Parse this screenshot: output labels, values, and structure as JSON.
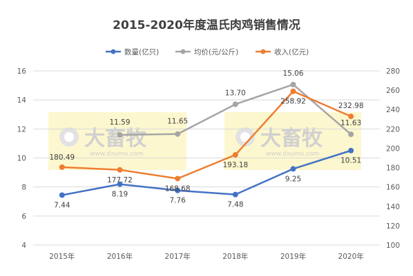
{
  "chart_data": {
    "type": "line",
    "title": "2015-2020年度温氏肉鸡销售情况",
    "categories": [
      "2015年",
      "2016年",
      "2017年",
      "2018年",
      "2019年",
      "2020年"
    ],
    "series": [
      {
        "name": "数量(亿只)",
        "axis": "left",
        "color": "#4472c4",
        "values": [
          7.44,
          8.19,
          7.76,
          7.48,
          9.25,
          10.51
        ],
        "labels": [
          "7.44",
          "8.19",
          "7.76",
          "7.48",
          "9.25",
          "10.51"
        ]
      },
      {
        "name": "均价(元/公斤)",
        "axis": "left",
        "color": "#a5a5a5",
        "values": [
          null,
          11.59,
          11.65,
          13.7,
          15.06,
          11.63
        ],
        "labels": [
          "",
          "11.59",
          "11.65",
          "13.70",
          "15.06",
          "11.63"
        ]
      },
      {
        "name": "收入(亿元)",
        "axis": "right",
        "color": "#ed7d31",
        "values": [
          180.49,
          177.72,
          168.68,
          193.18,
          258.92,
          232.98
        ],
        "labels": [
          "180.49",
          "177.72",
          "168.68",
          "193.18",
          "258.92",
          "232.98"
        ]
      }
    ],
    "y_left": {
      "min": 4,
      "max": 16,
      "step": 2,
      "ticks": [
        "4",
        "6",
        "8",
        "10",
        "12",
        "14",
        "16"
      ]
    },
    "y_right": {
      "min": 100,
      "max": 280,
      "step": 20,
      "ticks": [
        "100",
        "120",
        "140",
        "160",
        "180",
        "200",
        "220",
        "240",
        "260",
        "280"
      ]
    },
    "grid": true,
    "legend_position": "top"
  },
  "watermark": {
    "brand": "大畜牧",
    "site": "www.dxumu.com"
  }
}
